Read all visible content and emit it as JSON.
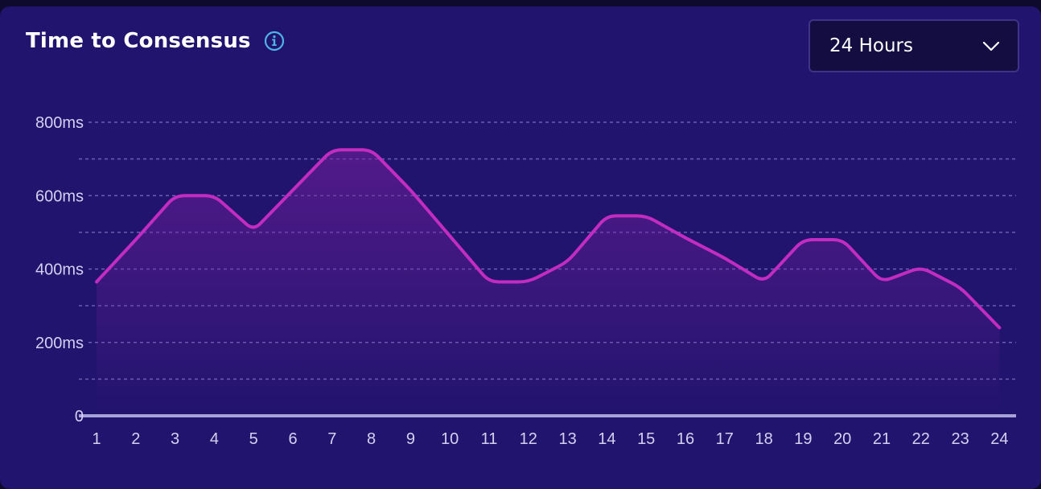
{
  "header": {
    "title": "Time to Consensus",
    "info_icon": "info-circle-icon"
  },
  "range_select": {
    "value": "24 Hours",
    "icon": "chevron-down-icon"
  },
  "colors": {
    "background": "#21146e",
    "line": "#c22cc0",
    "grid": "#6a5fb0",
    "axis": "#a8a3d6",
    "info_icon": "#4fb3e8"
  },
  "chart_data": {
    "type": "area",
    "title": "Time to Consensus",
    "x": [
      "1",
      "2",
      "3",
      "4",
      "5",
      "6",
      "7",
      "8",
      "9",
      "10",
      "11",
      "12",
      "13",
      "14",
      "15",
      "16",
      "17",
      "18",
      "19",
      "20",
      "21",
      "22",
      "23",
      "24"
    ],
    "series": [
      {
        "values": [
          365,
          480,
          600,
          600,
          505,
          615,
          725,
          725,
          615,
          490,
          365,
          365,
          420,
          545,
          545,
          485,
          430,
          365,
          480,
          480,
          365,
          405,
          350,
          240
        ]
      }
    ],
    "ylim": [
      0,
      800
    ],
    "yticks": [
      0,
      200,
      400,
      600,
      800
    ],
    "ytick_labels": [
      "0",
      "200ms",
      "400ms",
      "600ms",
      "800ms"
    ],
    "grid": true,
    "legend": "none"
  }
}
